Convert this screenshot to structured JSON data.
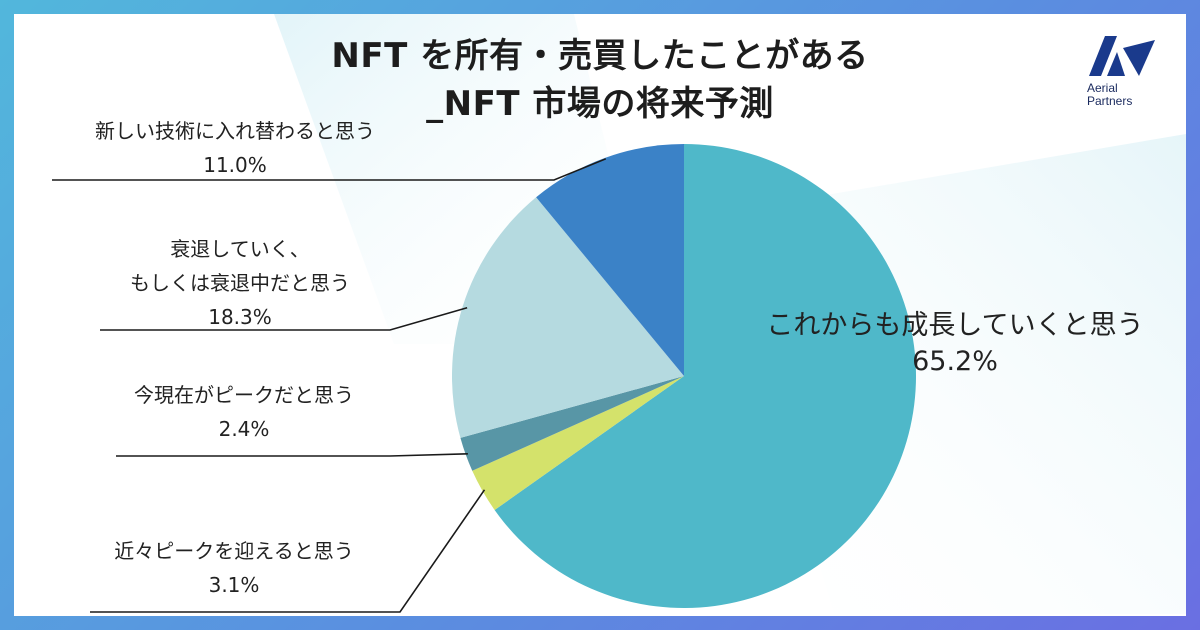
{
  "title_line1": "NFT を所有・売買したことがある",
  "title_line2": "_NFT 市場の将来予測",
  "logo": {
    "line1": "Aerial",
    "line2": "Partners",
    "color": "#1a3a8c"
  },
  "colors": {
    "frame_start": "#52b7dc",
    "frame_end": "#6a6fe2"
  },
  "chart_data": {
    "type": "pie",
    "start_angle_deg": 0,
    "direction": "clockwise",
    "slices": [
      {
        "label": "これからも成長していくと思う",
        "value": 65.2,
        "display": "65.2%",
        "color": "#4fb8c9"
      },
      {
        "label": "近々ピークを迎えると思う",
        "value": 3.1,
        "display": "3.1%",
        "color": "#d4e26b"
      },
      {
        "label": "今現在がピークだと思う",
        "value": 2.4,
        "display": "2.4%",
        "color": "#5896a6"
      },
      {
        "label_lines": [
          "衰退していく、",
          "もしくは衰退中だと思う"
        ],
        "value": 18.3,
        "display": "18.3%",
        "color": "#b5dae0"
      },
      {
        "label": "新しい技術に入れ替わると思う",
        "value": 11.0,
        "display": "11.0%",
        "color": "#3b82c7"
      }
    ]
  }
}
